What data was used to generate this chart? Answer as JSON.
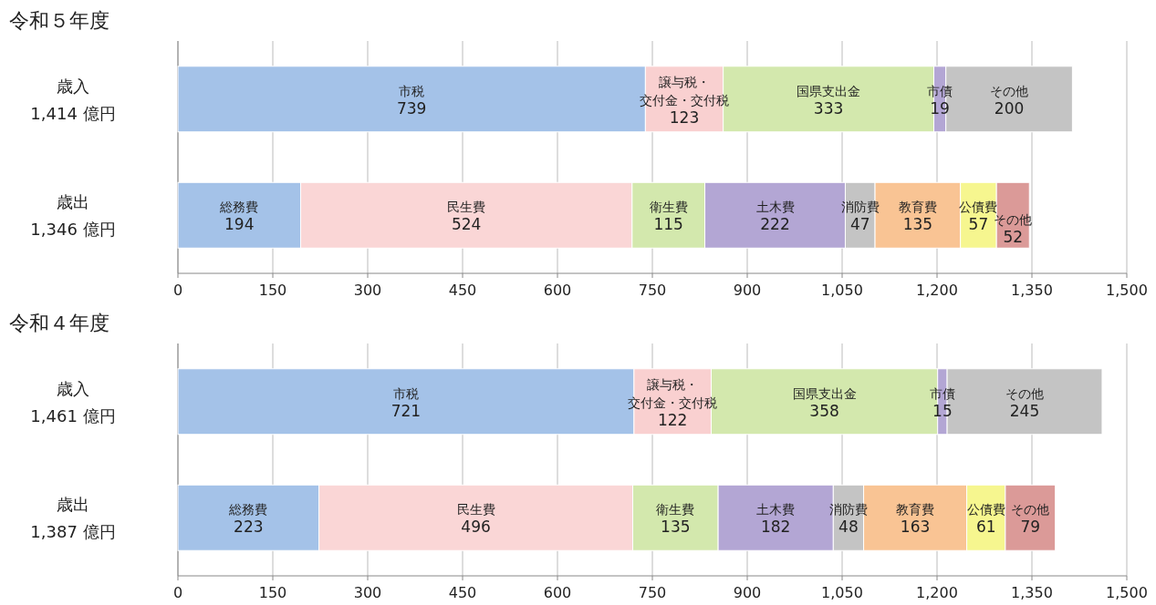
{
  "chart_data": [
    {
      "type": "bar",
      "orientation": "horizontal",
      "stacked": true,
      "title": "令和５年度",
      "categories": [
        "歳入\n1,414 億円",
        "歳出\n1,346 億円"
      ],
      "series": [
        {
          "name": "市税",
          "color": "#a4c2e8",
          "values": [
            739,
            null
          ]
        },
        {
          "name": "譲与税・交付金・交付税",
          "color": "#f9d0d0",
          "values": [
            123,
            null
          ]
        },
        {
          "name": "国県支出金",
          "color": "#d3e8ad",
          "values": [
            333,
            null
          ]
        },
        {
          "name": "市債",
          "color": "#b3a6d4",
          "values": [
            19,
            null
          ]
        },
        {
          "name": "その他",
          "color": "#c4c4c4",
          "values": [
            200,
            null
          ]
        },
        {
          "name": "総務費",
          "color": "#a4c2e8",
          "values": [
            null,
            194
          ]
        },
        {
          "name": "民生費",
          "color": "#fad6d6",
          "values": [
            null,
            524
          ]
        },
        {
          "name": "衛生費",
          "color": "#d3e8ad",
          "values": [
            null,
            115
          ]
        },
        {
          "name": "土木費",
          "color": "#b3a6d4",
          "values": [
            null,
            222
          ]
        },
        {
          "name": "消防費",
          "color": "#c4c4c4",
          "values": [
            null,
            47
          ]
        },
        {
          "name": "教育費",
          "color": "#f9c494",
          "values": [
            null,
            135
          ]
        },
        {
          "name": "公債費",
          "color": "#f6f68f",
          "values": [
            null,
            57
          ]
        },
        {
          "name": "その他",
          "color": "#db9a98",
          "values": [
            null,
            52
          ]
        }
      ],
      "xlim": [
        0,
        1500
      ],
      "xticks": [
        0,
        150,
        300,
        450,
        600,
        {
          "value": 750,
          "label": "750"
        },
        900,
        {
          "value": 1050,
          "label": "1,050"
        },
        {
          "value": 1200,
          "label": "1,200"
        },
        {
          "value": 1350,
          "label": "1,350"
        },
        {
          "value": 1500,
          "label": "1,500"
        }
      ],
      "grid": "x",
      "data_labels": true
    },
    {
      "type": "bar",
      "orientation": "horizontal",
      "stacked": true,
      "title": "令和４年度",
      "categories": [
        "歳入\n1,461 億円",
        "歳出\n1,387 億円"
      ],
      "series": [
        {
          "name": "市税",
          "color": "#a4c2e8",
          "values": [
            721,
            null
          ]
        },
        {
          "name": "譲与税・交付金・交付税",
          "color": "#f9d0d0",
          "values": [
            122,
            null
          ]
        },
        {
          "name": "国県支出金",
          "color": "#d3e8ad",
          "values": [
            358,
            null
          ]
        },
        {
          "name": "市債",
          "color": "#b3a6d4",
          "values": [
            15,
            null
          ]
        },
        {
          "name": "その他",
          "color": "#c4c4c4",
          "values": [
            245,
            null
          ]
        },
        {
          "name": "総務費",
          "color": "#a4c2e8",
          "values": [
            null,
            223
          ]
        },
        {
          "name": "民生費",
          "color": "#fad6d6",
          "values": [
            null,
            496
          ]
        },
        {
          "name": "衛生費",
          "color": "#d3e8ad",
          "values": [
            null,
            135
          ]
        },
        {
          "name": "土木費",
          "color": "#b3a6d4",
          "values": [
            null,
            182
          ]
        },
        {
          "name": "消防費",
          "color": "#c4c4c4",
          "values": [
            null,
            48
          ]
        },
        {
          "name": "教育費",
          "color": "#f9c494",
          "values": [
            null,
            163
          ]
        },
        {
          "name": "公債費",
          "color": "#f6f68f",
          "values": [
            null,
            61
          ]
        },
        {
          "name": "その他",
          "color": "#db9a98",
          "values": [
            null,
            79
          ]
        }
      ],
      "xlim": [
        0,
        1500
      ],
      "xticks": [
        0,
        150,
        300,
        450,
        600,
        {
          "value": 750,
          "label": "750"
        },
        900,
        {
          "value": 1050,
          "label": "1,050"
        },
        {
          "value": 1200,
          "label": "1,200"
        },
        {
          "value": 1350,
          "label": "1,350"
        },
        {
          "value": 1500,
          "label": "1,500"
        }
      ],
      "grid": "x",
      "data_labels": true
    }
  ]
}
